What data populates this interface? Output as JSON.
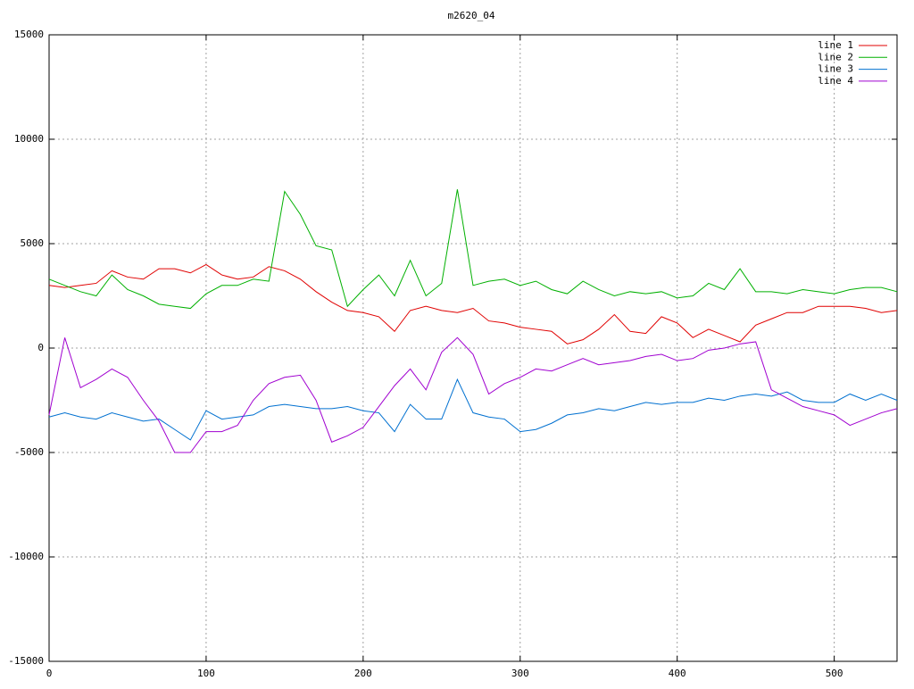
{
  "chart_data": {
    "type": "line",
    "title": "m2620_04",
    "x": [
      0,
      10,
      20,
      30,
      40,
      50,
      60,
      70,
      80,
      90,
      100,
      110,
      120,
      130,
      140,
      150,
      160,
      170,
      180,
      190,
      200,
      210,
      220,
      230,
      240,
      250,
      260,
      270,
      280,
      290,
      300,
      310,
      320,
      330,
      340,
      350,
      360,
      370,
      380,
      390,
      400,
      410,
      420,
      430,
      440,
      450,
      460,
      470,
      480,
      490,
      500,
      510,
      520,
      530,
      540
    ],
    "series": [
      {
        "name": "line 1",
        "color": "#e00000",
        "values": [
          3000,
          2900,
          3000,
          3100,
          3700,
          3400,
          3300,
          3800,
          3800,
          3600,
          4000,
          3500,
          3300,
          3400,
          3900,
          3700,
          3300,
          2700,
          2200,
          1800,
          1700,
          1500,
          800,
          1800,
          2000,
          1800,
          1700,
          1900,
          1300,
          1200,
          1000,
          900,
          800,
          200,
          400,
          900,
          1600,
          800,
          700,
          1500,
          1200,
          500,
          900,
          600,
          300,
          1100,
          1400,
          1700,
          1700,
          2000,
          2000,
          2000,
          1900,
          1700,
          1800
        ]
      },
      {
        "name": "line 2",
        "color": "#00b000",
        "values": [
          3300,
          3000,
          2700,
          2500,
          3500,
          2800,
          2500,
          2100,
          2000,
          1900,
          2600,
          3000,
          3000,
          3300,
          3200,
          7500,
          6400,
          4900,
          4700,
          2000,
          2800,
          3500,
          2500,
          4200,
          2500,
          3100,
          7600,
          3000,
          3200,
          3300,
          3000,
          3200,
          2800,
          2600,
          3200,
          2800,
          2500,
          2700,
          2600,
          2700,
          2400,
          2500,
          3100,
          2800,
          3800,
          2700,
          2700,
          2600,
          2800,
          2700,
          2600,
          2800,
          2900,
          2900,
          2700
        ]
      },
      {
        "name": "line 3",
        "color": "#0070d0",
        "values": [
          -3300,
          -3100,
          -3300,
          -3400,
          -3100,
          -3300,
          -3500,
          -3400,
          -3900,
          -4400,
          -3000,
          -3400,
          -3300,
          -3200,
          -2800,
          -2700,
          -2800,
          -2900,
          -2900,
          -2800,
          -3000,
          -3100,
          -4000,
          -2700,
          -3400,
          -3400,
          -1500,
          -3100,
          -3300,
          -3400,
          -4000,
          -3900,
          -3600,
          -3200,
          -3100,
          -2900,
          -3000,
          -2800,
          -2600,
          -2700,
          -2600,
          -2600,
          -2400,
          -2500,
          -2300,
          -2200,
          -2300,
          -2100,
          -2500,
          -2600,
          -2600,
          -2200,
          -2500,
          -2200,
          -2500
        ]
      },
      {
        "name": "line 4",
        "color": "#a000d0",
        "values": [
          -3200,
          500,
          -1900,
          -1500,
          -1000,
          -1400,
          -2500,
          -3500,
          -5000,
          -5000,
          -4000,
          -4000,
          -3700,
          -2500,
          -1700,
          -1400,
          -1300,
          -2500,
          -4500,
          -4200,
          -3800,
          -2800,
          -1800,
          -1000,
          -2000,
          -200,
          500,
          -300,
          -2200,
          -1700,
          -1400,
          -1000,
          -1100,
          -800,
          -500,
          -800,
          -700,
          -600,
          -400,
          -300,
          -600,
          -500,
          -100,
          0,
          200,
          300,
          -2000,
          -2400,
          -2800,
          -3000,
          -3200,
          -3700,
          -3400,
          -3100,
          -2900
        ]
      }
    ],
    "xlim": [
      0,
      540
    ],
    "xticks": [
      0,
      100,
      200,
      300,
      400,
      500
    ],
    "ylim": [
      -15000,
      15000
    ],
    "yticks": [
      -15000,
      -10000,
      -5000,
      0,
      5000,
      10000,
      15000
    ],
    "grid": true,
    "legend": "top-right"
  }
}
